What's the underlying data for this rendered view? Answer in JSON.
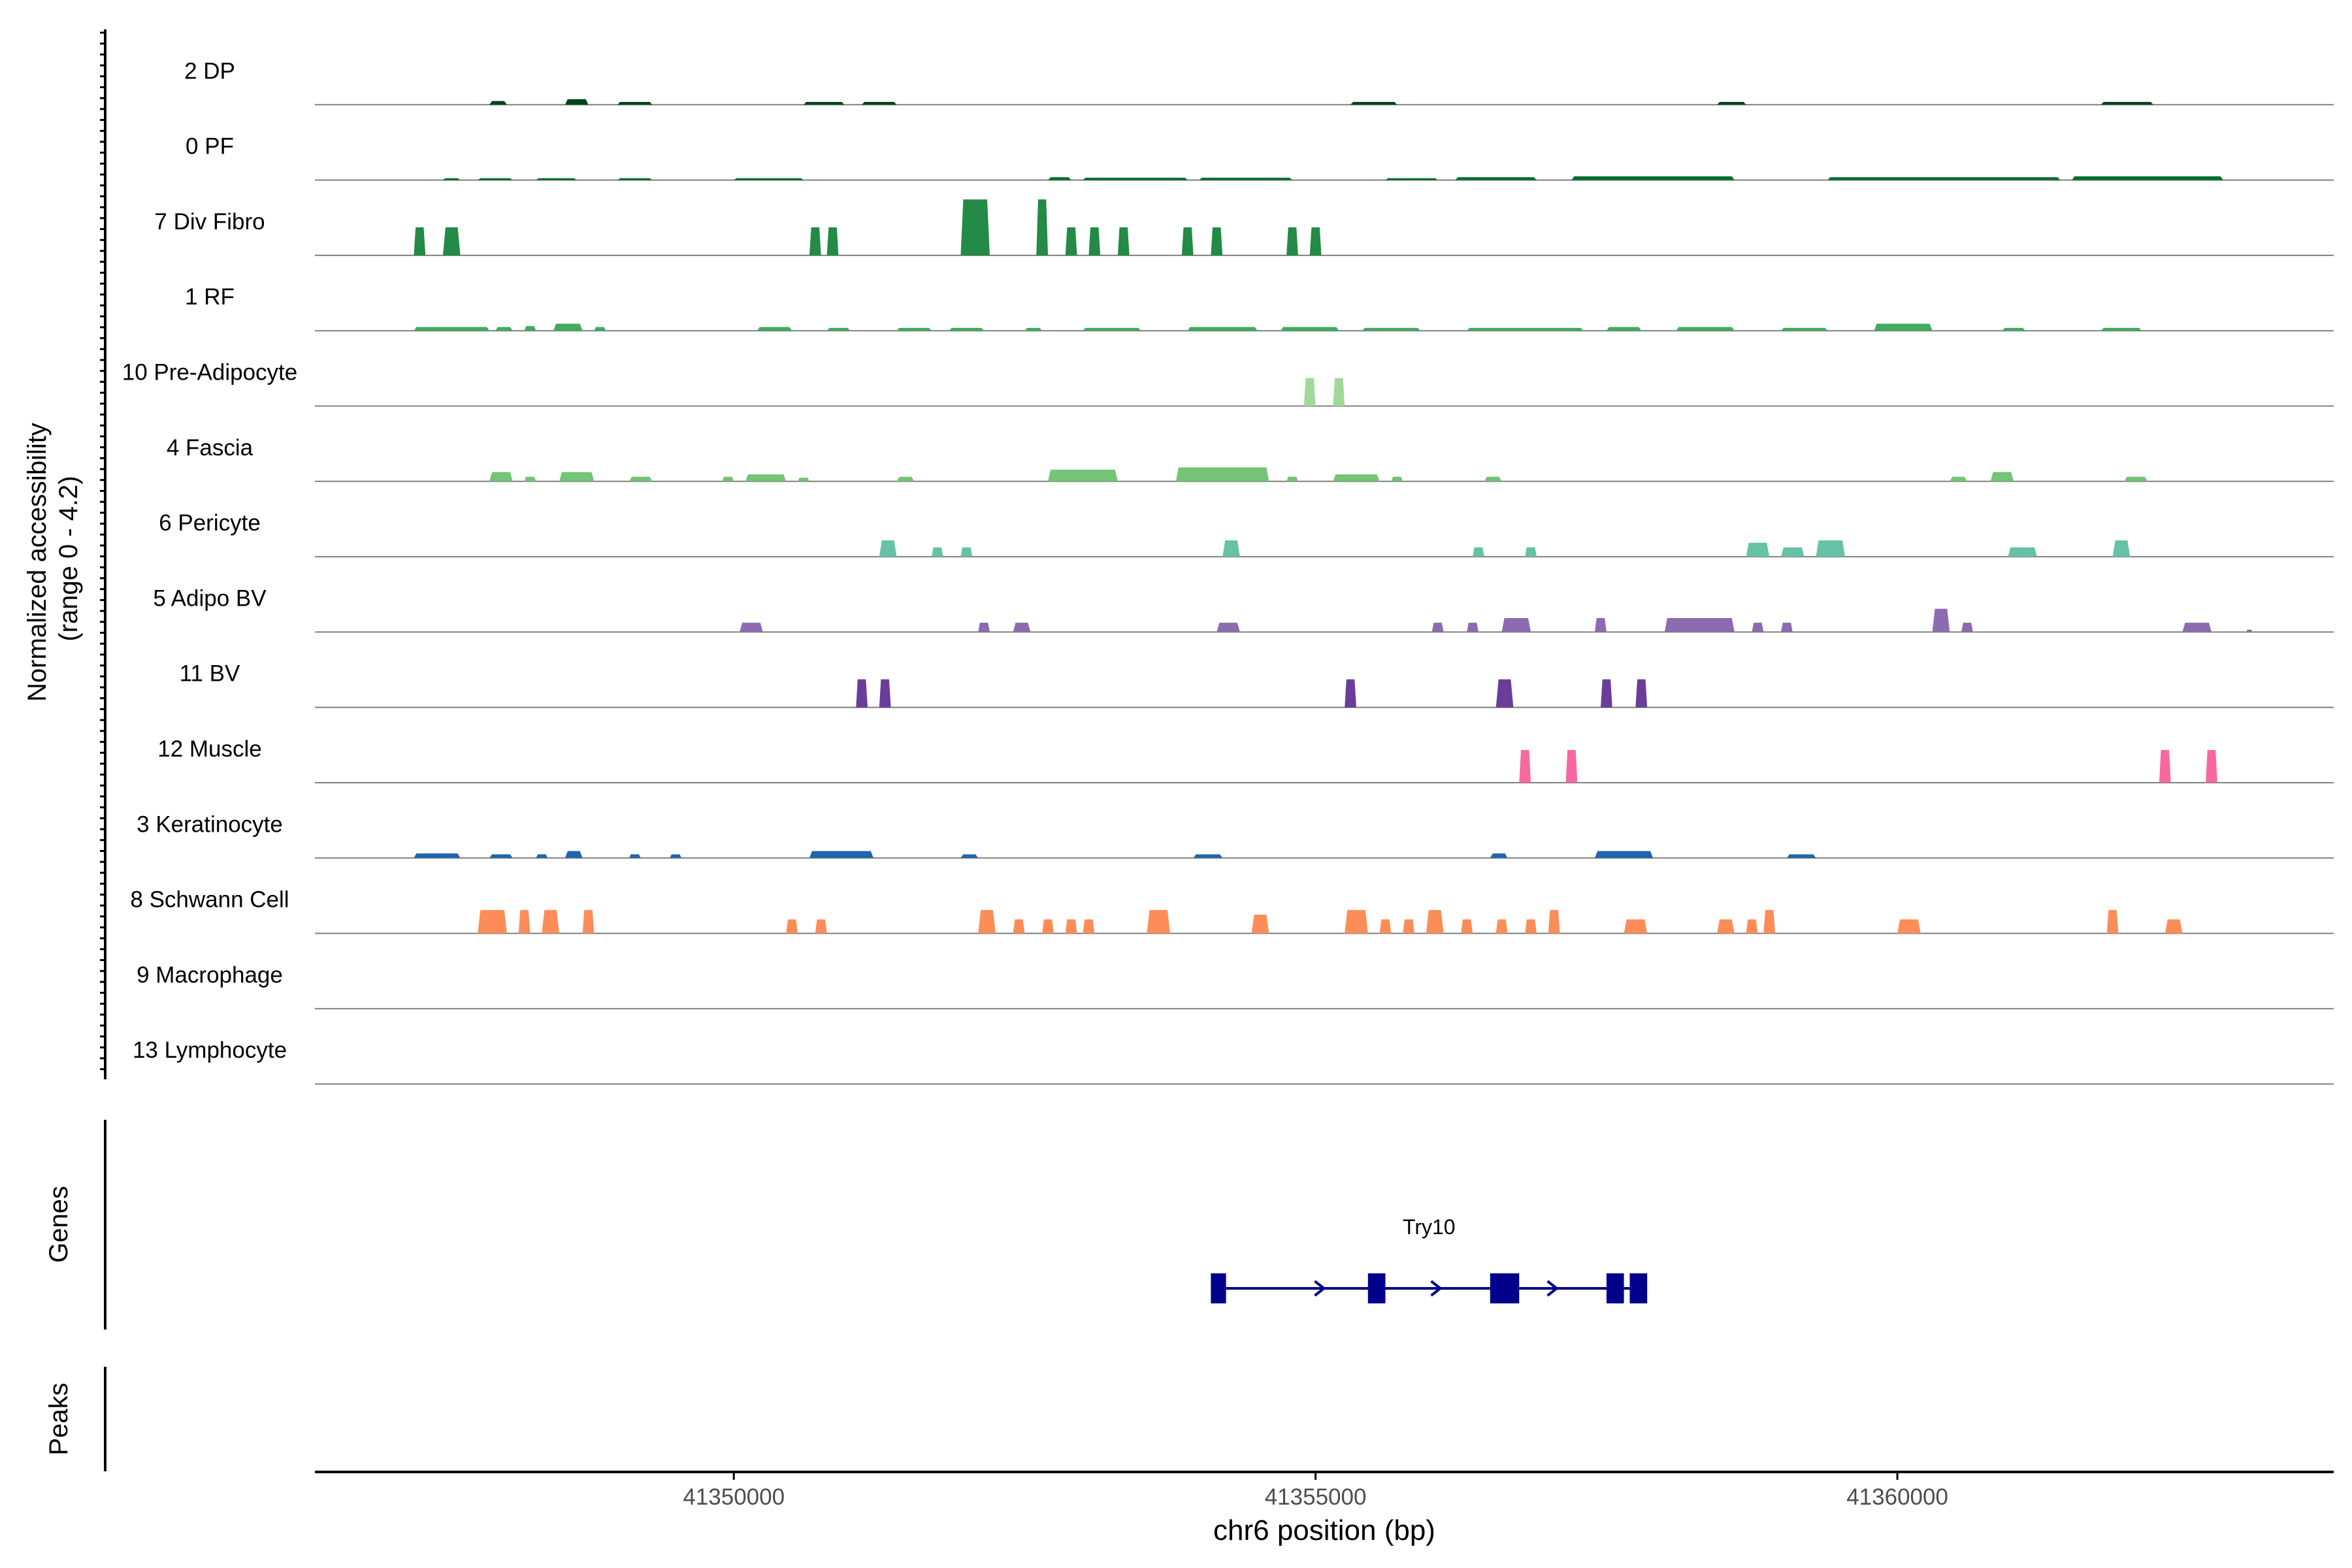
{
  "chart_data": {
    "type": "coverage-track",
    "title": "",
    "ylabel": "Normalized accessibility\n(range 0 - 4.2)",
    "ylabel_lines": [
      "Normalized accessibility",
      "(range 0 - 4.2)"
    ],
    "y_range": [
      0,
      4.2
    ],
    "xlabel": "chr6 position (bp)",
    "xlim": [
      41346400,
      41363750
    ],
    "x_ticks": [
      41350000,
      41355000,
      41360000
    ],
    "x_tick_labels": [
      "41350000",
      "41355000",
      "41360000"
    ],
    "panel_labels": {
      "genes": "Genes",
      "peaks": "Peaks"
    },
    "tracks": [
      {
        "name": "2 DP",
        "color": "#00441b",
        "peaks": [
          [
            41347900,
            41348050,
            0.08
          ],
          [
            41348550,
            41348750,
            0.12
          ],
          [
            41349000,
            41349300,
            0.06
          ],
          [
            41350600,
            41350950,
            0.06
          ],
          [
            41351100,
            41351400,
            0.06
          ],
          [
            41355300,
            41355700,
            0.06
          ],
          [
            41358450,
            41358700,
            0.06
          ],
          [
            41361750,
            41362200,
            0.06
          ]
        ]
      },
      {
        "name": "0 PF",
        "color": "#006d2c",
        "peaks": [
          [
            41347500,
            41347650,
            0.04
          ],
          [
            41347800,
            41348100,
            0.04
          ],
          [
            41348300,
            41348650,
            0.04
          ],
          [
            41349000,
            41349300,
            0.04
          ],
          [
            41350000,
            41350600,
            0.04
          ],
          [
            41352700,
            41352900,
            0.06
          ],
          [
            41353000,
            41353900,
            0.05
          ],
          [
            41354000,
            41354800,
            0.05
          ],
          [
            41355600,
            41356050,
            0.04
          ],
          [
            41356200,
            41356900,
            0.06
          ],
          [
            41357200,
            41358600,
            0.08
          ],
          [
            41359400,
            41361400,
            0.06
          ],
          [
            41361500,
            41362800,
            0.08
          ]
        ]
      },
      {
        "name": "7 Div Fibro",
        "color": "#238b45",
        "peaks": [
          [
            41347250,
            41347350,
            0.6
          ],
          [
            41347500,
            41347650,
            0.6
          ],
          [
            41350650,
            41350750,
            0.6
          ],
          [
            41350800,
            41350900,
            0.6
          ],
          [
            41351950,
            41352200,
            1.2
          ],
          [
            41352600,
            41352700,
            1.2
          ],
          [
            41352850,
            41352950,
            0.6
          ],
          [
            41353050,
            41353150,
            0.6
          ],
          [
            41353300,
            41353400,
            0.6
          ],
          [
            41353850,
            41353950,
            0.6
          ],
          [
            41354100,
            41354200,
            0.6
          ],
          [
            41354750,
            41354850,
            0.6
          ],
          [
            41354950,
            41355050,
            0.6
          ]
        ]
      },
      {
        "name": "1 RF",
        "color": "#41ab5d",
        "peaks": [
          [
            41347250,
            41347900,
            0.08
          ],
          [
            41347950,
            41348100,
            0.08
          ],
          [
            41348200,
            41348300,
            0.1
          ],
          [
            41348450,
            41348700,
            0.15
          ],
          [
            41348800,
            41348900,
            0.08
          ],
          [
            41350200,
            41350500,
            0.08
          ],
          [
            41350800,
            41351000,
            0.06
          ],
          [
            41351400,
            41351700,
            0.06
          ],
          [
            41351850,
            41352150,
            0.06
          ],
          [
            41352500,
            41352650,
            0.06
          ],
          [
            41353000,
            41353500,
            0.06
          ],
          [
            41353900,
            41354500,
            0.08
          ],
          [
            41354700,
            41355200,
            0.08
          ],
          [
            41355400,
            41355900,
            0.06
          ],
          [
            41356300,
            41357300,
            0.06
          ],
          [
            41357500,
            41357800,
            0.08
          ],
          [
            41358100,
            41358600,
            0.08
          ],
          [
            41359000,
            41359400,
            0.06
          ],
          [
            41359800,
            41360300,
            0.15
          ],
          [
            41360900,
            41361100,
            0.06
          ],
          [
            41361750,
            41362100,
            0.06
          ]
        ]
      },
      {
        "name": "10 Pre-Adipocyte",
        "color": "#a1d99b",
        "peaks": [
          [
            41354900,
            41355000,
            0.6
          ],
          [
            41355150,
            41355250,
            0.6
          ]
        ]
      },
      {
        "name": "4 Fascia",
        "color": "#74c476",
        "peaks": [
          [
            41347900,
            41348100,
            0.2
          ],
          [
            41348200,
            41348300,
            0.1
          ],
          [
            41348500,
            41348800,
            0.2
          ],
          [
            41349100,
            41349300,
            0.1
          ],
          [
            41349900,
            41350000,
            0.1
          ],
          [
            41350100,
            41350450,
            0.15
          ],
          [
            41350550,
            41350650,
            0.08
          ],
          [
            41351400,
            41351550,
            0.1
          ],
          [
            41352700,
            41353300,
            0.25
          ],
          [
            41353800,
            41354600,
            0.3
          ],
          [
            41354750,
            41354850,
            0.1
          ],
          [
            41355150,
            41355550,
            0.15
          ],
          [
            41355650,
            41355750,
            0.1
          ],
          [
            41356450,
            41356600,
            0.1
          ],
          [
            41360450,
            41360600,
            0.1
          ],
          [
            41360800,
            41361000,
            0.2
          ],
          [
            41361950,
            41362150,
            0.1
          ]
        ]
      },
      {
        "name": "6 Pericyte",
        "color": "#66c2a5",
        "peaks": [
          [
            41351250,
            41351400,
            0.35
          ],
          [
            41351700,
            41351800,
            0.2
          ],
          [
            41351950,
            41352050,
            0.2
          ],
          [
            41354200,
            41354350,
            0.35
          ],
          [
            41356350,
            41356450,
            0.2
          ],
          [
            41356800,
            41356900,
            0.2
          ],
          [
            41358700,
            41358900,
            0.3
          ],
          [
            41359000,
            41359200,
            0.2
          ],
          [
            41359300,
            41359550,
            0.35
          ],
          [
            41360950,
            41361200,
            0.2
          ],
          [
            41361850,
            41362000,
            0.35
          ]
        ]
      },
      {
        "name": "5 Adipo BV",
        "color": "#8c6bb1",
        "peaks": [
          [
            41350050,
            41350250,
            0.2
          ],
          [
            41352100,
            41352200,
            0.2
          ],
          [
            41352400,
            41352550,
            0.2
          ],
          [
            41354150,
            41354350,
            0.2
          ],
          [
            41356000,
            41356100,
            0.2
          ],
          [
            41356300,
            41356400,
            0.2
          ],
          [
            41356600,
            41356850,
            0.3
          ],
          [
            41357400,
            41357500,
            0.3
          ],
          [
            41358000,
            41358600,
            0.3
          ],
          [
            41358750,
            41358850,
            0.2
          ],
          [
            41359000,
            41359100,
            0.2
          ],
          [
            41360300,
            41360450,
            0.5
          ],
          [
            41360550,
            41360650,
            0.2
          ],
          [
            41362450,
            41362700,
            0.2
          ],
          [
            41363000,
            41363050,
            0.05
          ]
        ]
      },
      {
        "name": "11 BV",
        "color": "#6a3d9a",
        "peaks": [
          [
            41351050,
            41351150,
            0.6
          ],
          [
            41351250,
            41351350,
            0.6
          ],
          [
            41355250,
            41355350,
            0.6
          ],
          [
            41356550,
            41356700,
            0.6
          ],
          [
            41357450,
            41357550,
            0.6
          ],
          [
            41357750,
            41357850,
            0.6
          ]
        ]
      },
      {
        "name": "12 Muscle",
        "color": "#f768a1",
        "peaks": [
          [
            41356750,
            41356850,
            0.7
          ],
          [
            41357150,
            41357250,
            0.7
          ],
          [
            41362250,
            41362350,
            0.7
          ],
          [
            41362650,
            41362750,
            0.7
          ]
        ]
      },
      {
        "name": "3 Keratinocyte",
        "color": "#2166ac",
        "peaks": [
          [
            41347250,
            41347650,
            0.1
          ],
          [
            41347900,
            41348100,
            0.08
          ],
          [
            41348300,
            41348400,
            0.08
          ],
          [
            41348550,
            41348700,
            0.15
          ],
          [
            41349100,
            41349200,
            0.08
          ],
          [
            41349450,
            41349550,
            0.08
          ],
          [
            41350650,
            41351200,
            0.15
          ],
          [
            41351950,
            41352100,
            0.08
          ],
          [
            41353950,
            41354200,
            0.08
          ],
          [
            41356500,
            41356650,
            0.1
          ],
          [
            41357400,
            41357900,
            0.15
          ],
          [
            41359050,
            41359300,
            0.08
          ]
        ]
      },
      {
        "name": "8 Schwann Cell",
        "color": "#fc8d59",
        "peaks": [
          [
            41347800,
            41348050,
            0.5
          ],
          [
            41348150,
            41348250,
            0.5
          ],
          [
            41348350,
            41348500,
            0.5
          ],
          [
            41348700,
            41348800,
            0.5
          ],
          [
            41350450,
            41350550,
            0.3
          ],
          [
            41350700,
            41350800,
            0.3
          ],
          [
            41352100,
            41352250,
            0.5
          ],
          [
            41352400,
            41352500,
            0.3
          ],
          [
            41352650,
            41352750,
            0.3
          ],
          [
            41352850,
            41352950,
            0.3
          ],
          [
            41353000,
            41353100,
            0.3
          ],
          [
            41353550,
            41353750,
            0.5
          ],
          [
            41354450,
            41354600,
            0.4
          ],
          [
            41355250,
            41355450,
            0.5
          ],
          [
            41355550,
            41355650,
            0.3
          ],
          [
            41355750,
            41355850,
            0.3
          ],
          [
            41355950,
            41356100,
            0.5
          ],
          [
            41356250,
            41356350,
            0.3
          ],
          [
            41356550,
            41356650,
            0.3
          ],
          [
            41356800,
            41356900,
            0.3
          ],
          [
            41357000,
            41357100,
            0.5
          ],
          [
            41357650,
            41357850,
            0.3
          ],
          [
            41358450,
            41358600,
            0.3
          ],
          [
            41358700,
            41358800,
            0.3
          ],
          [
            41358850,
            41358950,
            0.5
          ],
          [
            41360000,
            41360200,
            0.3
          ],
          [
            41361800,
            41361900,
            0.5
          ],
          [
            41362300,
            41362450,
            0.3
          ]
        ]
      },
      {
        "name": "9 Macrophage",
        "color": "#555555",
        "peaks": []
      },
      {
        "name": "13 Lymphocyte",
        "color": "#555555",
        "peaks": []
      }
    ],
    "genes": [
      {
        "name": "Try10",
        "strand": "+",
        "color": "#00008b",
        "start": 41354100,
        "end": 41357850,
        "exons": [
          [
            41354100,
            41354230
          ],
          [
            41355450,
            41355600
          ],
          [
            41356500,
            41356750
          ],
          [
            41357500,
            41357650
          ],
          [
            41357700,
            41357850
          ]
        ]
      }
    ],
    "peaks_track": []
  }
}
